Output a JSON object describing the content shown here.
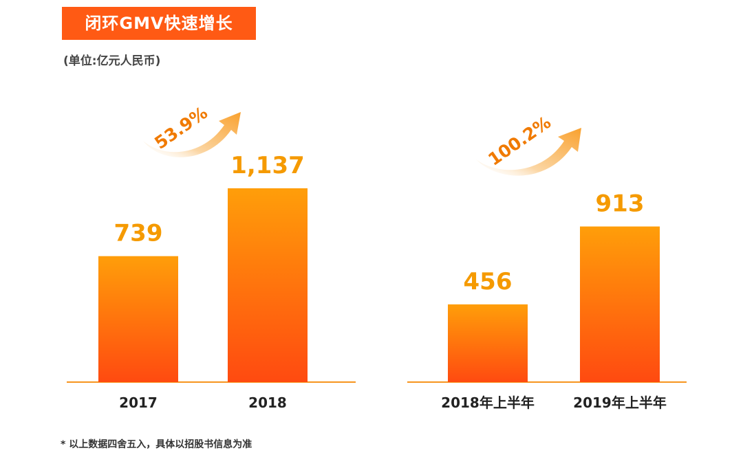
{
  "header": {
    "title": "闭环GMV快速增长",
    "unit": "(单位:亿元人民币)"
  },
  "footnote": "* 以上数据四舍五入，具体以招股书信息为准",
  "colors": {
    "banner": "#ff5a14",
    "bar_top": "#ff9e0a",
    "bar_bottom": "#ff4a10",
    "value_text": "#f59a00",
    "growth_text": "#f07a00",
    "axis": "#f7941d"
  },
  "chart_data": [
    {
      "type": "bar",
      "categories": [
        "2017",
        "2018"
      ],
      "values": [
        739,
        1137
      ],
      "value_labels": [
        "739",
        "1,137"
      ],
      "growth_label": "53.9%",
      "ylim": [
        0,
        1137
      ],
      "title": "",
      "xlabel": "",
      "ylabel": ""
    },
    {
      "type": "bar",
      "categories": [
        "2018年上半年",
        "2019年上半年"
      ],
      "values": [
        456,
        913
      ],
      "value_labels": [
        "456",
        "913"
      ],
      "growth_label": "100.2%",
      "ylim": [
        0,
        1137
      ],
      "title": "",
      "xlabel": "",
      "ylabel": ""
    }
  ]
}
